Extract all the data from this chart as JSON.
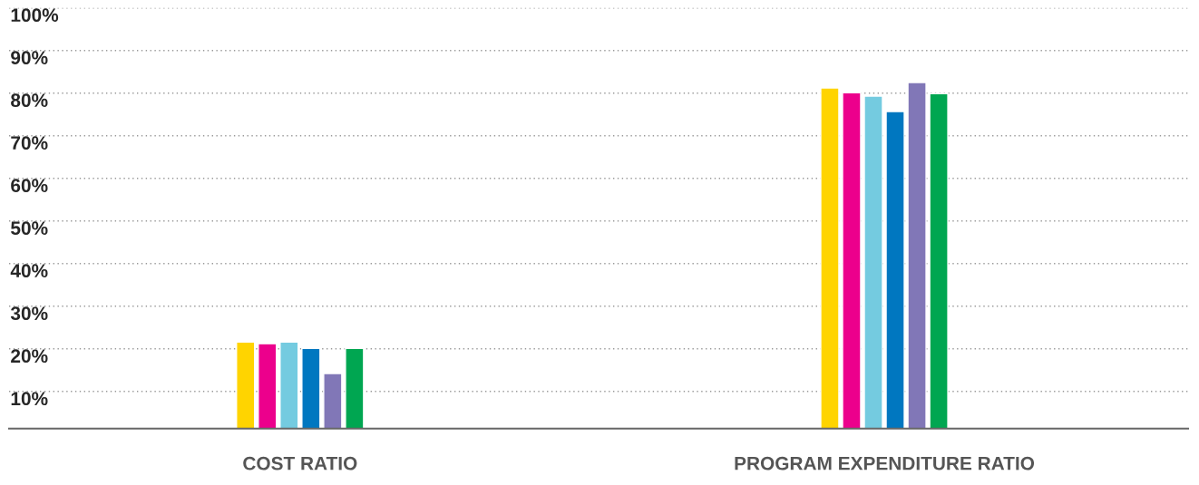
{
  "chart_data": {
    "type": "bar",
    "categories": [
      "COST RATIO",
      "PROGRAM EXPENDITURE RATIO"
    ],
    "series": [
      {
        "color": "#ffd400",
        "values": [
          21.6,
          81.2
        ]
      },
      {
        "color": "#ec008c",
        "values": [
          21.2,
          80.1
        ]
      },
      {
        "color": "#74cbe0",
        "values": [
          21.6,
          79.3
        ]
      },
      {
        "color": "#0077c0",
        "values": [
          20.1,
          75.7
        ]
      },
      {
        "color": "#8177b7",
        "values": [
          14.2,
          82.5
        ]
      },
      {
        "color": "#00a651",
        "values": [
          20.1,
          79.9
        ]
      }
    ],
    "ylim": [
      1.3,
      100
    ],
    "yticks": [
      {
        "value": 10,
        "label": "10%"
      },
      {
        "value": 20,
        "label": "20%"
      },
      {
        "value": 30,
        "label": "30%"
      },
      {
        "value": 40,
        "label": "40%"
      },
      {
        "value": 50,
        "label": "50%"
      },
      {
        "value": 60,
        "label": "60%"
      },
      {
        "value": 70,
        "label": "70%"
      },
      {
        "value": 80,
        "label": "80%"
      },
      {
        "value": 90,
        "label": "90%"
      },
      {
        "value": 100,
        "label": "100%"
      }
    ],
    "grid": "y",
    "legend": false
  }
}
